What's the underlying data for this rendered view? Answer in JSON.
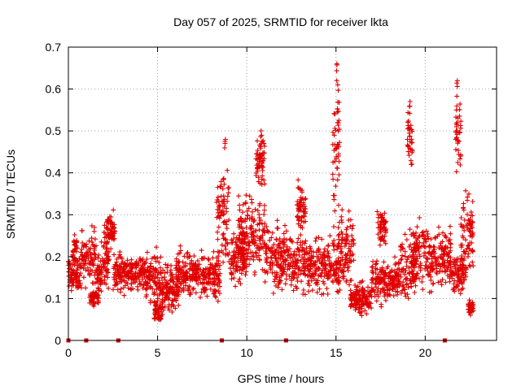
{
  "chart_data": {
    "type": "scatter",
    "title": "Day 057 of 2025, SRMTID for receiver lkta",
    "xlabel": "GPS time / hours",
    "ylabel": "SRMTID / TECUs",
    "xlim": [
      0,
      24
    ],
    "ylim": [
      0,
      0.7
    ],
    "xticks": [
      0,
      5,
      10,
      15,
      20
    ],
    "yticks": [
      0,
      0.1,
      0.2,
      0.3,
      0.4,
      0.5,
      0.6,
      0.7
    ],
    "ytick_labels": [
      "0",
      "0.1",
      "0.2",
      "0.3",
      "0.4",
      "0.5",
      "0.6",
      "0.7"
    ],
    "grid": true,
    "marker": "+",
    "series": [
      {
        "name": "SRMTID",
        "color": "#e00000",
        "segments": [
          {
            "start": 0.0,
            "end": 0.75,
            "base": 0.16,
            "spread": 0.05
          },
          {
            "start": 0.25,
            "end": 0.5,
            "base": 0.22,
            "spread": 0.04
          },
          {
            "start": 0.75,
            "end": 1.5,
            "base": 0.2,
            "spread": 0.08
          },
          {
            "start": 1.2,
            "end": 1.7,
            "base": 0.1,
            "spread": 0.02
          },
          {
            "start": 1.5,
            "end": 2.3,
            "base": 0.18,
            "spread": 0.06
          },
          {
            "start": 2.0,
            "end": 2.6,
            "base": 0.26,
            "spread": 0.05
          },
          {
            "start": 2.5,
            "end": 3.3,
            "base": 0.16,
            "spread": 0.05
          },
          {
            "start": 3.3,
            "end": 4.2,
            "base": 0.16,
            "spread": 0.04
          },
          {
            "start": 4.2,
            "end": 5.2,
            "base": 0.15,
            "spread": 0.06
          },
          {
            "start": 4.8,
            "end": 5.3,
            "base": 0.07,
            "spread": 0.03
          },
          {
            "start": 5.2,
            "end": 6.2,
            "base": 0.12,
            "spread": 0.06
          },
          {
            "start": 6.0,
            "end": 7.5,
            "base": 0.16,
            "spread": 0.06
          },
          {
            "start": 7.5,
            "end": 8.5,
            "base": 0.15,
            "spread": 0.07
          },
          {
            "start": 8.3,
            "end": 9.0,
            "base": 0.3,
            "spread": 0.12
          },
          {
            "start": 9.0,
            "end": 10.0,
            "base": 0.2,
            "spread": 0.07
          },
          {
            "start": 9.5,
            "end": 11.0,
            "base": 0.25,
            "spread": 0.09
          },
          {
            "start": 10.5,
            "end": 11.0,
            "base": 0.43,
            "spread": 0.06
          },
          {
            "start": 11.0,
            "end": 12.5,
            "base": 0.2,
            "spread": 0.08
          },
          {
            "start": 12.5,
            "end": 14.0,
            "base": 0.18,
            "spread": 0.07
          },
          {
            "start": 12.8,
            "end": 13.3,
            "base": 0.32,
            "spread": 0.06
          },
          {
            "start": 14.0,
            "end": 15.2,
            "base": 0.18,
            "spread": 0.07
          },
          {
            "start": 14.8,
            "end": 15.2,
            "base": 0.45,
            "spread": 0.18
          },
          {
            "start": 15.2,
            "end": 16.0,
            "base": 0.22,
            "spread": 0.09
          },
          {
            "start": 15.8,
            "end": 17.0,
            "base": 0.1,
            "spread": 0.04
          },
          {
            "start": 17.0,
            "end": 18.5,
            "base": 0.14,
            "spread": 0.05
          },
          {
            "start": 17.3,
            "end": 17.8,
            "base": 0.27,
            "spread": 0.05
          },
          {
            "start": 18.5,
            "end": 19.5,
            "base": 0.18,
            "spread": 0.08
          },
          {
            "start": 19.0,
            "end": 19.3,
            "base": 0.48,
            "spread": 0.08
          },
          {
            "start": 19.3,
            "end": 20.5,
            "base": 0.2,
            "spread": 0.08
          },
          {
            "start": 20.5,
            "end": 21.5,
            "base": 0.2,
            "spread": 0.07
          },
          {
            "start": 21.5,
            "end": 22.3,
            "base": 0.16,
            "spread": 0.05
          },
          {
            "start": 21.7,
            "end": 22.0,
            "base": 0.5,
            "spread": 0.1
          },
          {
            "start": 22.0,
            "end": 22.7,
            "base": 0.25,
            "spread": 0.1
          },
          {
            "start": 22.4,
            "end": 22.7,
            "base": 0.08,
            "spread": 0.02
          }
        ],
        "peaks": [
          {
            "x": 15.05,
            "y": 0.66
          },
          {
            "x": 15.1,
            "y": 0.61
          },
          {
            "x": 21.8,
            "y": 0.62
          },
          {
            "x": 19.15,
            "y": 0.57
          },
          {
            "x": 10.8,
            "y": 0.5
          },
          {
            "x": 8.8,
            "y": 0.48
          },
          {
            "x": 15.1,
            "y": 0.52
          },
          {
            "x": 21.75,
            "y": 0.55
          }
        ]
      }
    ],
    "zero_markers_x": [
      0.0,
      1.0,
      2.8,
      8.6,
      12.2,
      21.1
    ]
  }
}
